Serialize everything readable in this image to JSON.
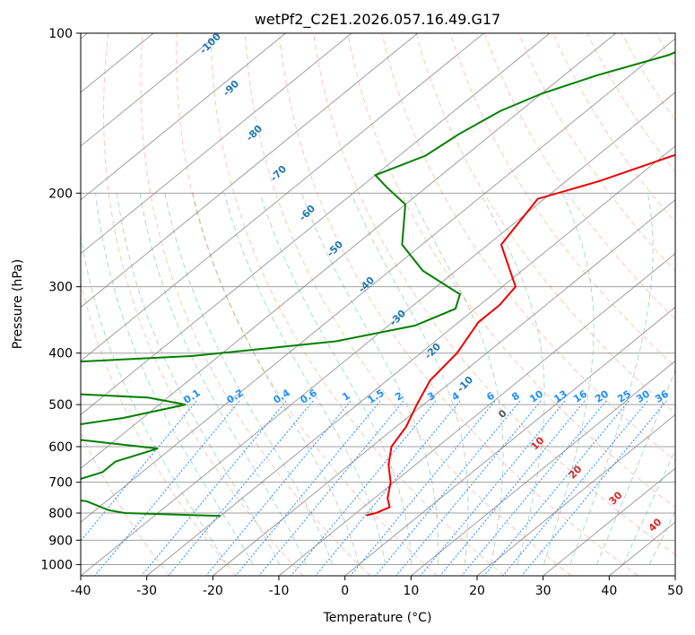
{
  "chart_data": {
    "type": "line",
    "title": "wetPf2_C2E1.2026.057.16.49.G17",
    "xlabel": "Temperature (°C)",
    "ylabel": "Pressure (hPa)",
    "xlim": [
      -40,
      50
    ],
    "ylim": [
      1050,
      100
    ],
    "y_scale": "log",
    "grid": true,
    "x_ticks": [
      -40,
      -30,
      -20,
      -10,
      0,
      10,
      20,
      30,
      40,
      50
    ],
    "y_ticks": [
      100,
      200,
      300,
      400,
      500,
      600,
      700,
      800,
      900,
      1000
    ],
    "colors": {
      "temperature": "#ee0000",
      "dewpoint": "#008000",
      "dry_adiabat": "#fa8072",
      "moist_adiabat": "#2e8b57",
      "mixing_ratio": "#1e90ff",
      "isotherm": "#808080",
      "isotherm_labels": "#1f77b4",
      "freezing_label": "#555555",
      "warm_labels": "#d62728",
      "mixing_labels": "#1e90ff"
    },
    "series": [
      {
        "key": "temperature",
        "points": [
          [
            -11,
            100
          ],
          [
            -14,
            118
          ],
          [
            -18,
            130
          ],
          [
            -25,
            160
          ],
          [
            -35,
            190
          ],
          [
            -41,
            205
          ],
          [
            -38,
            250
          ],
          [
            -28,
            300
          ],
          [
            -27,
            325
          ],
          [
            -27,
            350
          ],
          [
            -24.5,
            400
          ],
          [
            -23.5,
            450
          ],
          [
            -21,
            500
          ],
          [
            -18.5,
            550
          ],
          [
            -17,
            600
          ],
          [
            -14,
            650
          ],
          [
            -10.5,
            700
          ],
          [
            -8,
            750
          ],
          [
            -6,
            780
          ],
          [
            -7,
            800
          ],
          [
            -8,
            808
          ]
        ]
      },
      {
        "key": "dewpoint",
        "points": [
          [
            -44,
            100
          ],
          [
            -48,
            110
          ],
          [
            -55,
            120
          ],
          [
            -60,
            130
          ],
          [
            -63,
            140
          ],
          [
            -65,
            155
          ],
          [
            -66,
            170
          ],
          [
            -70,
            185
          ],
          [
            -66,
            195
          ],
          [
            -60,
            210
          ],
          [
            -53,
            250
          ],
          [
            -45,
            280
          ],
          [
            -35,
            310
          ],
          [
            -33,
            330
          ],
          [
            -36,
            355
          ],
          [
            -45,
            380
          ],
          [
            -64,
            405
          ],
          [
            -80,
            415
          ],
          [
            -108,
            430
          ],
          [
            -140,
            445
          ],
          [
            -90,
            468
          ],
          [
            -63,
            485
          ],
          [
            -56,
            500
          ],
          [
            -63,
            530
          ],
          [
            -72,
            555
          ],
          [
            -67,
            580
          ],
          [
            -52,
            605
          ],
          [
            -56,
            640
          ],
          [
            -56,
            670
          ],
          [
            -60,
            710
          ],
          [
            -63,
            740
          ],
          [
            -53,
            760
          ],
          [
            -48,
            790
          ],
          [
            -45,
            800
          ],
          [
            -30,
            810
          ]
        ]
      }
    ],
    "isotherm_labels": [
      "-100",
      "-90",
      "-80",
      "-70",
      "-60",
      "-50",
      "-40",
      "-30",
      "-20",
      "-10",
      "0",
      "10",
      "20",
      "30",
      "40"
    ],
    "mixing_ratio_labels": [
      "0.1",
      "0.2",
      "0.4",
      "0.6",
      "1",
      "1.5",
      "2",
      "3",
      "4",
      "6",
      "8",
      "10",
      "13",
      "16",
      "20",
      "25",
      "30",
      "36"
    ]
  }
}
